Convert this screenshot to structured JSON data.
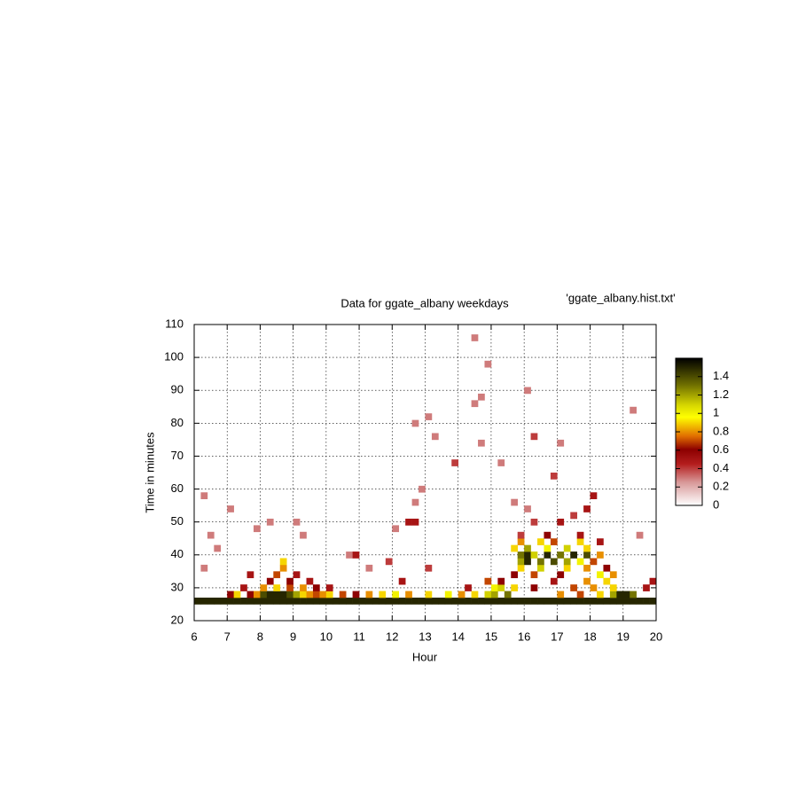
{
  "chart_data": {
    "type": "heatmap",
    "title": "Data for ggate_albany weekdays",
    "key_label": "'ggate_albany.hist.txt'",
    "x_label": "Hour",
    "y_label": "Time in minutes",
    "xlim": [
      6,
      20
    ],
    "xticks": [
      6,
      7,
      8,
      9,
      10,
      11,
      12,
      13,
      14,
      15,
      16,
      17,
      18,
      19,
      20
    ],
    "ylim": [
      20,
      110
    ],
    "yticks": [
      20,
      30,
      40,
      50,
      60,
      70,
      80,
      90,
      100,
      110
    ],
    "zlim": [
      0,
      1.6
    ],
    "zticks": [
      0,
      0.2,
      0.4,
      0.6,
      0.8,
      1,
      1.2,
      1.4
    ],
    "grid": true,
    "rows": [
      {
        "y": 26,
        "x": [
          6,
          6.2,
          6.4,
          6.6,
          6.8,
          7,
          7.2,
          7.4,
          7.6,
          7.8,
          8,
          8.2,
          8.4,
          8.6,
          8.8,
          9,
          9.2,
          9.4,
          9.6,
          9.8,
          10,
          10.2,
          10.4,
          10.6,
          10.8,
          11,
          11.2,
          11.4,
          11.6,
          11.8,
          12,
          12.2,
          12.4,
          12.6,
          12.8,
          13,
          13.2,
          13.4,
          13.6,
          13.8,
          14,
          14.2,
          14.4,
          14.6,
          14.8,
          15,
          15.2,
          15.4,
          15.6,
          15.8,
          16,
          16.2,
          16.4,
          16.6,
          16.8,
          17,
          17.2,
          17.4,
          17.6,
          17.8,
          18,
          18.2,
          18.4,
          18.6,
          18.8,
          19,
          19.2,
          19.4,
          19.6,
          19.8
        ],
        "values": [
          1.5,
          1.5,
          1.5,
          1.5,
          1.5,
          1.5,
          1.5,
          1.5,
          1.5,
          1.5,
          1.5,
          1.5,
          1.5,
          1.5,
          1.5,
          1.5,
          1.5,
          1.5,
          1.5,
          1.5,
          1.5,
          1.5,
          1.5,
          1.5,
          1.5,
          1.5,
          1.5,
          1.5,
          1.5,
          1.5,
          1.5,
          1.5,
          1.5,
          1.5,
          1.5,
          1.5,
          1.5,
          1.5,
          1.5,
          1.5,
          1.5,
          1.5,
          1.5,
          1.5,
          1.5,
          1.5,
          1.5,
          1.5,
          1.5,
          1.5,
          1.5,
          1.5,
          1.5,
          1.5,
          1.5,
          1.5,
          1.5,
          1.5,
          1.5,
          1.5,
          1.5,
          1.5,
          1.5,
          1.5,
          1.5,
          1.5,
          1.5,
          1.5,
          1.5,
          1.5
        ]
      },
      {
        "y": 28,
        "x": [
          7,
          7.2,
          7.6,
          7.8,
          8,
          8.2,
          8.4,
          8.6,
          8.8,
          9,
          9.2,
          9.4,
          9.6,
          9.8,
          10,
          10.4,
          10.8,
          11.2,
          11.6,
          12,
          12.4,
          13,
          13.6,
          14,
          14.4,
          14.8,
          15,
          15.4,
          17,
          17.6,
          18.2,
          18.6,
          18.8,
          19,
          19.2
        ],
        "values": [
          0.6,
          0.9,
          0.6,
          0.8,
          1.4,
          1.5,
          1.5,
          1.5,
          1.4,
          1.2,
          0.9,
          0.8,
          0.7,
          0.8,
          0.9,
          0.7,
          0.6,
          0.8,
          0.9,
          1,
          0.8,
          0.9,
          1,
          0.8,
          0.9,
          1.1,
          1.2,
          1.3,
          0.8,
          0.7,
          0.9,
          1.2,
          1.5,
          1.5,
          1.3
        ]
      },
      {
        "y": 30,
        "x": [
          7.4,
          8,
          8.4,
          8.8,
          9.2,
          9.6,
          10,
          14.2,
          15,
          15.2,
          15.6,
          16.2,
          17.4,
          18,
          18.6,
          19.6
        ],
        "values": [
          0.5,
          0.8,
          0.9,
          0.7,
          0.8,
          0.6,
          0.5,
          0.5,
          1,
          1.1,
          0.9,
          0.6,
          0.7,
          0.8,
          0.9,
          0.5
        ]
      },
      {
        "y": 32,
        "x": [
          8.2,
          8.8,
          9.4,
          12.2,
          14.8,
          15.2,
          16.8,
          17.8,
          18.4,
          19.8
        ],
        "values": [
          0.6,
          0.6,
          0.5,
          0.5,
          0.7,
          0.6,
          0.5,
          0.8,
          0.9,
          0.5
        ]
      },
      {
        "y": 34,
        "x": [
          7.6,
          8.4,
          9,
          15.6,
          16.2,
          17,
          18.2,
          18.6
        ],
        "values": [
          0.5,
          0.7,
          0.5,
          0.6,
          0.7,
          0.6,
          1,
          0.8
        ]
      },
      {
        "y": 36,
        "x": [
          6.2,
          8.6,
          11.2,
          13,
          15.8,
          16.4,
          17.2,
          17.8,
          18.4
        ],
        "values": [
          0.3,
          0.8,
          0.3,
          0.4,
          0.9,
          1.1,
          0.9,
          0.8,
          0.6
        ]
      },
      {
        "y": 38,
        "x": [
          8.6,
          11.8,
          15.8,
          16,
          16.4,
          16.8,
          17.2,
          17.6,
          18
        ],
        "values": [
          0.9,
          0.4,
          1.2,
          1.5,
          1.3,
          1.4,
          1.2,
          1,
          0.7
        ]
      },
      {
        "y": 40,
        "x": [
          10.6,
          10.8,
          15.8,
          16,
          16.2,
          16.6,
          17,
          17.4,
          17.8,
          18.2
        ],
        "values": [
          0.3,
          0.5,
          1.3,
          1.5,
          1.1,
          1.5,
          1.3,
          1.5,
          1.4,
          0.8
        ]
      },
      {
        "y": 42,
        "x": [
          6.6,
          15.6,
          16,
          16.6,
          17.2,
          17.8
        ],
        "values": [
          0.3,
          0.9,
          1.2,
          1,
          1.1,
          0.9
        ]
      },
      {
        "y": 44,
        "x": [
          15.8,
          16.4,
          16.8,
          17.6,
          18.2
        ],
        "values": [
          0.8,
          0.9,
          0.7,
          0.9,
          0.5
        ]
      },
      {
        "y": 46,
        "x": [
          6.4,
          9.2,
          15.8,
          16.6,
          17.6,
          19.4
        ],
        "values": [
          0.3,
          0.3,
          0.4,
          0.6,
          0.5,
          0.3
        ]
      },
      {
        "y": 48,
        "x": [
          7.8,
          12
        ],
        "values": [
          0.3,
          0.3
        ]
      },
      {
        "y": 50,
        "x": [
          8.2,
          9,
          12.4,
          12.6,
          16.2,
          17
        ],
        "values": [
          0.3,
          0.3,
          0.5,
          0.5,
          0.4,
          0.5
        ]
      },
      {
        "y": 52,
        "x": [
          17.4
        ],
        "values": [
          0.4
        ]
      },
      {
        "y": 54,
        "x": [
          7,
          16,
          17.8
        ],
        "values": [
          0.3,
          0.3,
          0.5
        ]
      },
      {
        "y": 56,
        "x": [
          12.6,
          15.6
        ],
        "values": [
          0.3,
          0.3
        ]
      },
      {
        "y": 58,
        "x": [
          6.2,
          18
        ],
        "values": [
          0.3,
          0.5
        ]
      },
      {
        "y": 60,
        "x": [
          12.8
        ],
        "values": [
          0.3
        ]
      },
      {
        "y": 64,
        "x": [
          16.8
        ],
        "values": [
          0.4
        ]
      },
      {
        "y": 68,
        "x": [
          13.8,
          15.2
        ],
        "values": [
          0.4,
          0.3
        ]
      },
      {
        "y": 74,
        "x": [
          14.6,
          17
        ],
        "values": [
          0.3,
          0.3
        ]
      },
      {
        "y": 76,
        "x": [
          13.2,
          16.2
        ],
        "values": [
          0.3,
          0.4
        ]
      },
      {
        "y": 80,
        "x": [
          12.6
        ],
        "values": [
          0.3
        ]
      },
      {
        "y": 82,
        "x": [
          13
        ],
        "values": [
          0.3
        ]
      },
      {
        "y": 84,
        "x": [
          19.2
        ],
        "values": [
          0.3
        ]
      },
      {
        "y": 86,
        "x": [
          14.4
        ],
        "values": [
          0.3
        ]
      },
      {
        "y": 88,
        "x": [
          14.6
        ],
        "values": [
          0.3
        ]
      },
      {
        "y": 90,
        "x": [
          16
        ],
        "values": [
          0.3
        ]
      },
      {
        "y": 98,
        "x": [
          14.8
        ],
        "values": [
          0.3
        ]
      },
      {
        "y": 106,
        "x": [
          14.4
        ],
        "values": [
          0.3
        ]
      }
    ]
  }
}
